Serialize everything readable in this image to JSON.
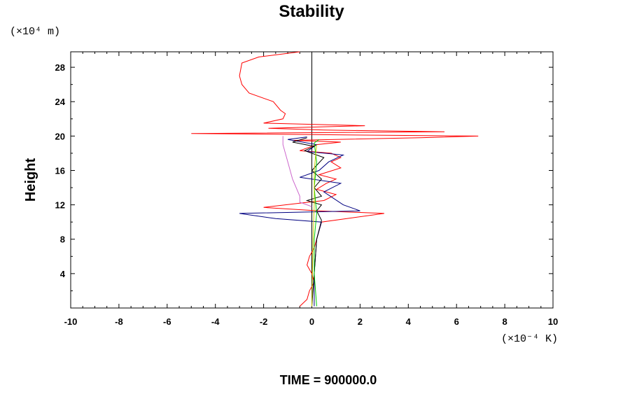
{
  "chart_data": {
    "type": "line",
    "title": "Stability",
    "xlabel": "",
    "ylabel": "Height",
    "x_unit": "(×10⁻⁴ K)",
    "y_unit": "(×10⁴ m)",
    "xlim": [
      -10,
      10
    ],
    "ylim": [
      0,
      29.8
    ],
    "x_ticks": [
      -10,
      -8,
      -6,
      -4,
      -2,
      0,
      2,
      4,
      6,
      8,
      10
    ],
    "y_ticks": [
      4,
      8,
      12,
      16,
      20,
      24,
      28
    ],
    "grid": false,
    "footer": "TIME = 900000.0",
    "series": [
      {
        "color": "#ff0000",
        "points": [
          [
            -0.5,
            0.2
          ],
          [
            -0.2,
            1
          ],
          [
            -0.1,
            2
          ],
          [
            0.1,
            3
          ],
          [
            0,
            4
          ],
          [
            -0.2,
            5
          ],
          [
            -0.1,
            6
          ],
          [
            0.1,
            7
          ],
          [
            0.2,
            8
          ],
          [
            0.3,
            9
          ],
          [
            0.4,
            10
          ],
          [
            3.0,
            11
          ],
          [
            0.3,
            11.3
          ],
          [
            -2.0,
            11.7
          ],
          [
            -0.5,
            12.2
          ],
          [
            0.5,
            12.5
          ],
          [
            1.0,
            13.2
          ],
          [
            0.2,
            13.8
          ],
          [
            0.6,
            14.5
          ],
          [
            1.0,
            15
          ],
          [
            0.3,
            15.5
          ],
          [
            1.2,
            16.3
          ],
          [
            0.8,
            17
          ],
          [
            1.2,
            17.5
          ],
          [
            0.8,
            18
          ],
          [
            -0.5,
            18.3
          ],
          [
            0.2,
            19
          ],
          [
            1.2,
            19.3
          ],
          [
            -0.8,
            19.5
          ],
          [
            4.5,
            19.8
          ],
          [
            6.9,
            20
          ],
          [
            -5,
            20.3
          ],
          [
            5.5,
            20.5
          ],
          [
            0.5,
            20.7
          ],
          [
            -1.8,
            20.9
          ],
          [
            2.2,
            21.2
          ],
          [
            -2,
            21.5
          ],
          [
            -1.2,
            22
          ],
          [
            -1.1,
            22.6
          ],
          [
            -1.3,
            23
          ],
          [
            -1.6,
            24
          ],
          [
            -2.6,
            25
          ],
          [
            -2.9,
            26
          ],
          [
            -3,
            27
          ],
          [
            -2.9,
            28.5
          ],
          [
            -2.2,
            29.2
          ],
          [
            -0.5,
            29.8
          ]
        ]
      },
      {
        "color": "#000080",
        "points": [
          [
            0.1,
            0.2
          ],
          [
            0.1,
            4
          ],
          [
            0.2,
            8
          ],
          [
            0.4,
            10
          ],
          [
            -1.5,
            10.4
          ],
          [
            -3,
            11
          ],
          [
            2,
            11.3
          ],
          [
            1.3,
            12
          ],
          [
            0.5,
            13.5
          ],
          [
            1.2,
            14.5
          ],
          [
            -0.5,
            15.2
          ],
          [
            0.3,
            16
          ],
          [
            0.7,
            17
          ],
          [
            1.3,
            17.8
          ],
          [
            -0.2,
            18.2
          ],
          [
            0.2,
            19
          ],
          [
            -1,
            19.6
          ],
          [
            -0.2,
            19.9
          ]
        ]
      },
      {
        "color": "#000000",
        "points": [
          [
            0,
            0.2
          ],
          [
            0.1,
            4
          ],
          [
            0.2,
            8
          ],
          [
            0.4,
            10.2
          ],
          [
            0.2,
            11.3
          ],
          [
            0.4,
            12
          ],
          [
            -0.2,
            12.5
          ],
          [
            0.4,
            13
          ],
          [
            0.1,
            14
          ],
          [
            0.4,
            15
          ],
          [
            0,
            16
          ],
          [
            0.5,
            17.5
          ],
          [
            -0.3,
            18.3
          ],
          [
            0.1,
            18.8
          ],
          [
            -0.8,
            19.3
          ],
          [
            -0.2,
            19.8
          ]
        ]
      },
      {
        "color": "#cc66cc",
        "points": [
          [
            0,
            11.8
          ],
          [
            -0.5,
            12.3
          ],
          [
            -0.5,
            13
          ],
          [
            -0.8,
            15
          ],
          [
            -1.0,
            17
          ],
          [
            -1.2,
            19
          ],
          [
            -1.2,
            20
          ]
        ]
      },
      {
        "color": "#00cc00",
        "points": [
          [
            0.2,
            0.2
          ],
          [
            0.1,
            4
          ],
          [
            0.1,
            8
          ],
          [
            0.2,
            11
          ],
          [
            0.1,
            14
          ],
          [
            0.2,
            17
          ],
          [
            0.1,
            19.2
          ],
          [
            0.3,
            19.6
          ]
        ]
      },
      {
        "color": "#cccc00",
        "points": [
          [
            0,
            0.2
          ],
          [
            0.05,
            8
          ],
          [
            0.1,
            12
          ],
          [
            0.1,
            16
          ],
          [
            0.2,
            19
          ]
        ]
      }
    ]
  }
}
